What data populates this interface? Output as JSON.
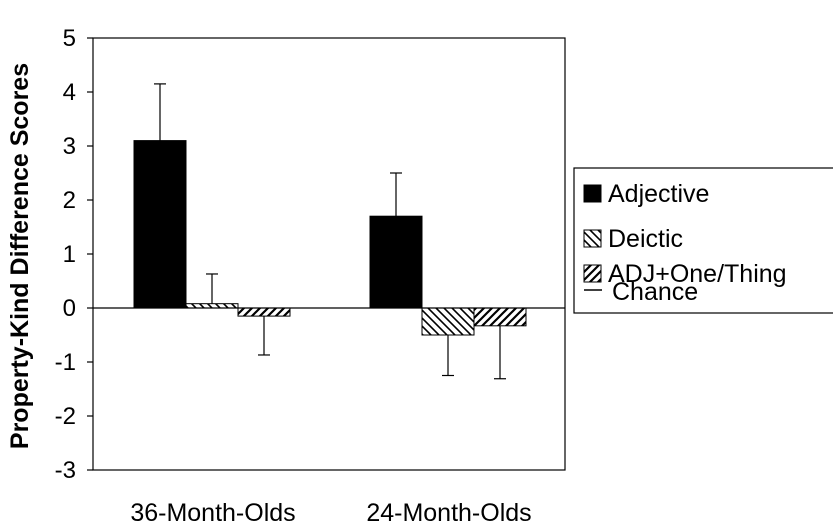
{
  "chart_data": {
    "type": "bar",
    "title": "",
    "xlabel": "",
    "ylabel": "Property-Kind Difference Scores",
    "ylim": [
      -3,
      5
    ],
    "yticks": [
      "5",
      "4",
      "3",
      "2",
      "1",
      "0",
      "-1",
      "-2",
      "-3"
    ],
    "categories": [
      "36-Month-Olds",
      "24-Month-Olds"
    ],
    "series": [
      {
        "name": "Adjective",
        "values": [
          3.1,
          1.7
        ],
        "error": [
          1.05,
          0.8
        ],
        "pattern": "solid"
      },
      {
        "name": "Deictic",
        "values": [
          0.08,
          -0.5
        ],
        "error": [
          0.55,
          0.75
        ],
        "pattern": "hatch-back"
      },
      {
        "name": "ADJ+One/Thing",
        "values": [
          -0.15,
          -0.33
        ],
        "error": [
          0.72,
          0.98
        ],
        "pattern": "hatch-forward"
      }
    ],
    "reference_line": {
      "name": "Chance",
      "value": 0
    },
    "legend_placement": "right",
    "grid": false,
    "colors": {
      "bar_fill": "#000000",
      "background": "#ffffff",
      "stroke": "#000000"
    }
  }
}
